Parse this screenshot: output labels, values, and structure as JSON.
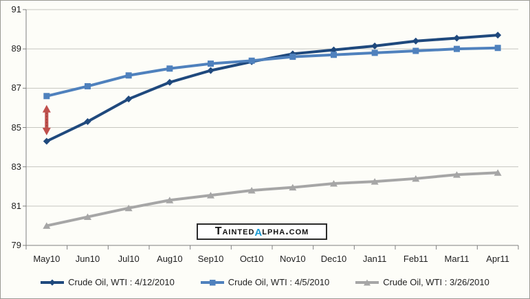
{
  "chart_data": {
    "type": "line",
    "title": "",
    "categories": [
      "May10",
      "Jun10",
      "Jul10",
      "Aug10",
      "Sep10",
      "Oct10",
      "Nov10",
      "Dec10",
      "Jan11",
      "Feb11",
      "Mar11",
      "Apr11"
    ],
    "y_axis": {
      "min": 79,
      "max": 91,
      "tick_step": 2,
      "ticks": [
        79,
        81,
        83,
        85,
        87,
        89,
        91
      ]
    },
    "grid": true,
    "legend_position": "bottom",
    "series": [
      {
        "name": "Crude Oil, WTI : 4/12/2010",
        "color": "#1F497D",
        "marker": "diamond",
        "values": [
          84.3,
          85.3,
          86.45,
          87.3,
          87.9,
          88.35,
          88.75,
          88.95,
          89.15,
          89.4,
          89.55,
          89.7
        ]
      },
      {
        "name": "Crude Oil, WTI : 4/5/2010",
        "color": "#4F81BD",
        "marker": "square",
        "values": [
          86.6,
          87.1,
          87.65,
          88.0,
          88.25,
          88.4,
          88.6,
          88.7,
          88.8,
          88.9,
          89.0,
          89.05
        ]
      },
      {
        "name": "Crude Oil, WTI : 3/26/2010",
        "color": "#A6A6A6",
        "marker": "triangle",
        "values": [
          80.0,
          80.45,
          80.9,
          81.3,
          81.55,
          81.8,
          81.95,
          82.15,
          82.25,
          82.4,
          82.6,
          82.7
        ]
      }
    ],
    "annotations": [
      {
        "type": "double-arrow",
        "category_index": 0,
        "from": 84.6,
        "to": 86.15,
        "color": "#C0504D",
        "inner_color": "#8C3836"
      }
    ]
  },
  "axis_style": {
    "grid_color": "#c6c6c0",
    "axis_color": "#7f7f7f",
    "text_color": "#1f1f1f"
  },
  "watermark": {
    "display": "TaintedAlpha.com",
    "part1": "Tainted",
    "alpha": "α",
    "part3": "lpha.com",
    "alpha_color": "#189AD3"
  }
}
